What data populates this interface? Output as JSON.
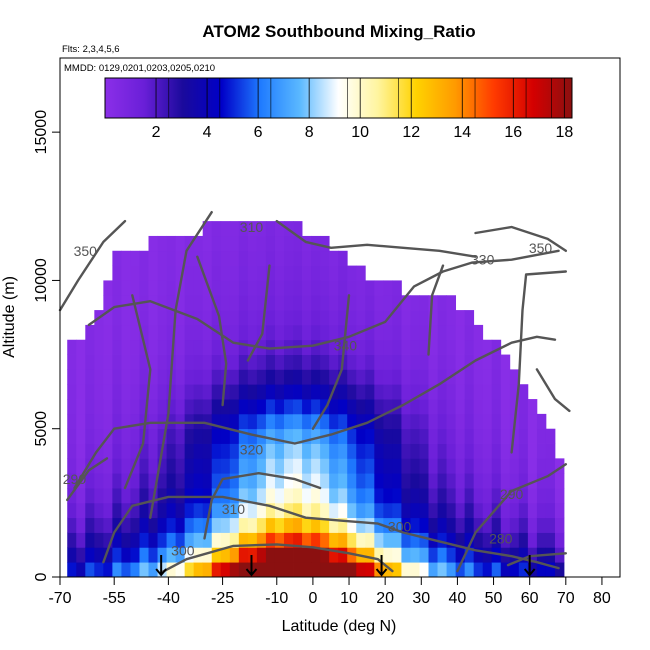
{
  "chart_data": {
    "type": "heatmap",
    "title": "ATOM2 Southbound Mixing_Ratio",
    "flights_note": "Flts: 2,3,4,5,6",
    "dates_note": "MMDD: 0129,0201,0203,0205,0210",
    "xlabel": "Latitude (deg N)",
    "ylabel": "Altitude (m)",
    "xlim": [
      -70,
      85
    ],
    "ylim": [
      0,
      17500
    ],
    "x_ticks": [
      -70,
      -55,
      -40,
      -25,
      -10,
      0,
      10,
      20,
      30,
      40,
      50,
      60,
      70,
      80
    ],
    "x_tick_labels": [
      "-70",
      "-55",
      "-40",
      "-25",
      "-10",
      "0",
      "10",
      "20",
      "30",
      "40",
      "50",
      "60",
      "70",
      "80"
    ],
    "y_ticks": [
      0,
      5000,
      10000,
      15000
    ],
    "y_tick_labels": [
      "0",
      "5000",
      "10000",
      "15000"
    ],
    "colorbar": {
      "min": 0,
      "max": 18.3,
      "ticks": [
        2,
        4,
        6,
        8,
        10,
        12,
        14,
        16,
        18
      ],
      "tick_labels": [
        "2",
        "4",
        "6",
        "8",
        "10",
        "12",
        "14",
        "16",
        "18"
      ],
      "color_stops": [
        "#8b2fe8",
        "#6a1fd8",
        "#1a0a9c",
        "#0000c8",
        "#1f7bff",
        "#5ab8ff",
        "#ffffff",
        "#fff5a0",
        "#ffd200",
        "#ff9a00",
        "#ff3a00",
        "#d40000",
        "#8b1010"
      ]
    },
    "field": {
      "lat_step": 5,
      "alt_step": 500,
      "peak": {
        "lat": -5,
        "alt": 250,
        "value": 17.5
      },
      "tropical_center_lat": -5,
      "extent_top_m": [
        {
          "lat": -68,
          "top": 7500
        },
        {
          "lat": -60,
          "top": 8500
        },
        {
          "lat": -55,
          "top": 10500
        },
        {
          "lat": -45,
          "top": 11000
        },
        {
          "lat": -30,
          "top": 11500
        },
        {
          "lat": -20,
          "top": 12000
        },
        {
          "lat": -10,
          "top": 12000
        },
        {
          "lat": 5,
          "top": 11000
        },
        {
          "lat": 15,
          "top": 10000
        },
        {
          "lat": 25,
          "top": 9500
        },
        {
          "lat": 40,
          "top": 9000
        },
        {
          "lat": 55,
          "top": 7000
        },
        {
          "lat": 65,
          "top": 5000
        },
        {
          "lat": 70,
          "top": 3000
        }
      ]
    },
    "contour_labels": [
      {
        "text": "350",
        "lat": -63,
        "alt": 11000
      },
      {
        "text": "310",
        "lat": -17,
        "alt": 11800
      },
      {
        "text": "330",
        "lat": 47,
        "alt": 10700
      },
      {
        "text": "350",
        "lat": 63,
        "alt": 11100
      },
      {
        "text": "340",
        "lat": 9,
        "alt": 7800
      },
      {
        "text": "320",
        "lat": -17,
        "alt": 4300
      },
      {
        "text": "310",
        "lat": -22,
        "alt": 2300
      },
      {
        "text": "300",
        "lat": -36,
        "alt": 900
      },
      {
        "text": "300",
        "lat": 24,
        "alt": 1700
      },
      {
        "text": "290",
        "lat": -66,
        "alt": 3300
      },
      {
        "text": "290",
        "lat": 55,
        "alt": 2800
      },
      {
        "text": "280",
        "lat": 52,
        "alt": 1300
      }
    ],
    "surface_arrows_lat": [
      -42,
      -17,
      19,
      60
    ]
  }
}
